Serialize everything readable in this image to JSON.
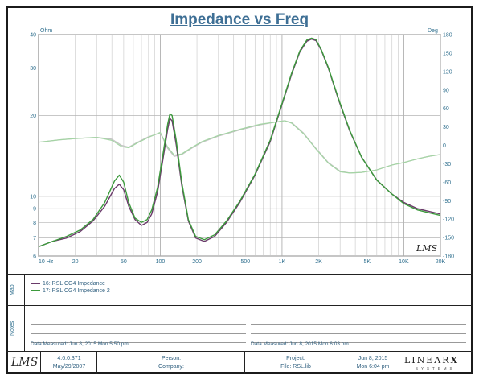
{
  "chart_data": {
    "type": "line",
    "title": "Impedance vs Freq",
    "y_left_unit": "Ohm",
    "y_right_unit": "Deg",
    "x_scale": "log",
    "y_left_scale": "log",
    "xlim": [
      10,
      20000
    ],
    "ylim_left": [
      6,
      40
    ],
    "ylim_right": [
      -180,
      180
    ],
    "x_ticks": [
      {
        "value": 10,
        "label": "10 Hz"
      },
      {
        "value": 20,
        "label": "20"
      },
      {
        "value": 50,
        "label": "50"
      },
      {
        "value": 100,
        "label": "100"
      },
      {
        "value": 200,
        "label": "200"
      },
      {
        "value": 500,
        "label": "500"
      },
      {
        "value": 1000,
        "label": "1K"
      },
      {
        "value": 2000,
        "label": "2K"
      },
      {
        "value": 5000,
        "label": "5K"
      },
      {
        "value": 10000,
        "label": "10K"
      },
      {
        "value": 20000,
        "label": "20K"
      }
    ],
    "y_left_ticks": [
      {
        "value": 40,
        "label": "40"
      },
      {
        "value": 30,
        "label": "30"
      },
      {
        "value": 20,
        "label": "20"
      },
      {
        "value": 10,
        "label": "10"
      },
      {
        "value": 9,
        "label": "9"
      },
      {
        "value": 8,
        "label": "8"
      },
      {
        "value": 7,
        "label": "7"
      },
      {
        "value": 6,
        "label": "6"
      }
    ],
    "y_right_ticks": [
      {
        "value": 180,
        "label": "180"
      },
      {
        "value": 150,
        "label": "150"
      },
      {
        "value": 120,
        "label": "120"
      },
      {
        "value": 90,
        "label": "90"
      },
      {
        "value": 60,
        "label": "60"
      },
      {
        "value": 30,
        "label": "30"
      },
      {
        "value": 0,
        "label": "0"
      },
      {
        "value": -30,
        "label": "-30"
      },
      {
        "value": -60,
        "label": "-60"
      },
      {
        "value": -90,
        "label": "-90"
      },
      {
        "value": -120,
        "label": "-120"
      },
      {
        "value": -150,
        "label": "-150"
      },
      {
        "value": -180,
        "label": "-180"
      }
    ],
    "grid": true,
    "series": [
      {
        "name": "16: RSL CG4 Impedance",
        "color": "#6a3a6a",
        "axis": "left",
        "x": [
          10,
          13,
          17,
          22,
          28,
          35,
          42,
          46,
          50,
          55,
          62,
          70,
          78,
          85,
          95,
          105,
          115,
          120,
          125,
          135,
          150,
          170,
          195,
          230,
          280,
          350,
          450,
          600,
          800,
          1000,
          1200,
          1400,
          1600,
          1750,
          1900,
          2100,
          2400,
          2900,
          3600,
          4500,
          6000,
          8000,
          10000,
          13000,
          16000,
          20000
        ],
        "values": [
          6.5,
          6.8,
          7.0,
          7.4,
          8.1,
          9.2,
          10.7,
          11.1,
          10.6,
          9.2,
          8.2,
          7.8,
          8.0,
          8.6,
          10.4,
          13.7,
          17.8,
          19.5,
          19.1,
          15.6,
          11.0,
          8.1,
          7.0,
          6.8,
          7.1,
          8.0,
          9.5,
          12.0,
          16.0,
          22.0,
          28.5,
          34.5,
          37.8,
          38.5,
          38.0,
          35.0,
          30.0,
          23.0,
          17.5,
          14.0,
          11.5,
          10.2,
          9.5,
          9.0,
          8.8,
          8.6
        ]
      },
      {
        "name": "17: RSL CG4 Impedance 2",
        "color": "#3c9a3c",
        "axis": "left",
        "x": [
          10,
          13,
          17,
          22,
          28,
          35,
          42,
          46,
          50,
          55,
          62,
          70,
          78,
          85,
          95,
          105,
          115,
          120,
          125,
          135,
          150,
          170,
          195,
          230,
          280,
          350,
          450,
          600,
          800,
          1000,
          1200,
          1400,
          1600,
          1750,
          1900,
          2100,
          2400,
          2900,
          3600,
          4500,
          6000,
          8000,
          10000,
          13000,
          16000,
          20000
        ],
        "values": [
          6.5,
          6.8,
          7.1,
          7.5,
          8.2,
          9.5,
          11.4,
          12.0,
          11.3,
          9.5,
          8.3,
          8.0,
          8.2,
          8.9,
          10.8,
          14.3,
          18.6,
          20.3,
          20.0,
          16.2,
          11.3,
          8.2,
          7.1,
          6.9,
          7.2,
          8.1,
          9.6,
          12.1,
          16.2,
          22.2,
          28.8,
          34.8,
          38.2,
          38.8,
          38.3,
          35.2,
          30.2,
          23.2,
          17.6,
          14.0,
          11.5,
          10.2,
          9.4,
          8.9,
          8.7,
          8.5
        ]
      },
      {
        "name": "16: RSL CG4 Impedance (phase)",
        "color": "#c3c3c3",
        "axis": "right",
        "x": [
          10,
          15,
          20,
          30,
          40,
          48,
          55,
          65,
          80,
          100,
          115,
          130,
          150,
          180,
          220,
          300,
          450,
          650,
          900,
          1050,
          1200,
          1500,
          1900,
          2400,
          3000,
          3600,
          4500,
          6000,
          8000,
          10000,
          13000,
          16000,
          20000
        ],
        "values": [
          5,
          9,
          11,
          13,
          10,
          0,
          -3,
          5,
          14,
          20,
          -5,
          -18,
          -15,
          -5,
          5,
          15,
          25,
          33,
          38,
          40,
          37,
          20,
          -5,
          -28,
          -42,
          -45,
          -44,
          -40,
          -32,
          -28,
          -22,
          -18,
          -15
        ]
      },
      {
        "name": "17: RSL CG4 Impedance 2 (phase)",
        "color": "#a4d4a4",
        "axis": "right",
        "x": [
          10,
          15,
          20,
          30,
          40,
          48,
          55,
          65,
          80,
          100,
          115,
          130,
          150,
          180,
          220,
          300,
          450,
          650,
          900,
          1050,
          1200,
          1500,
          1900,
          2400,
          3000,
          3600,
          4500,
          6000,
          8000,
          10000,
          13000,
          16000,
          20000
        ],
        "values": [
          5,
          9,
          11,
          13,
          8,
          -2,
          -4,
          4,
          13,
          21,
          -3,
          -16,
          -14,
          -4,
          6,
          16,
          26,
          34,
          38,
          40,
          36,
          19,
          -6,
          -29,
          -43,
          -45,
          -44,
          -40,
          -32,
          -28,
          -22,
          -18,
          -15
        ]
      }
    ]
  },
  "legend": [
    {
      "label": "16: RSL CG4 Impedance",
      "color": "#6a3a6a"
    },
    {
      "label": "17: RSL CG4 Impedance 2",
      "color": "#3c9a3c"
    }
  ],
  "panels": {
    "map_label": "Map",
    "notes_label": "Notes",
    "measured_left": "Data Measured: Jun 8, 2015 Mon 5:50 pm",
    "measured_right": "Data Measured: Jun 8, 2015 Mon 6:03 pm"
  },
  "footer": {
    "logo": "LMS",
    "version": "4.6.0.371",
    "version_date": "May/29/2007",
    "person_label": "Person:",
    "company_label": "Company:",
    "project_label": "Project:",
    "file_label": "File: RSL.lib",
    "date": "Jun 8, 2015",
    "day_time": "Mon  6:04 pm",
    "brand": "LINEAR",
    "brand_x": "X",
    "brand_sub": "SYSTEMS"
  },
  "watermark": "LMS"
}
